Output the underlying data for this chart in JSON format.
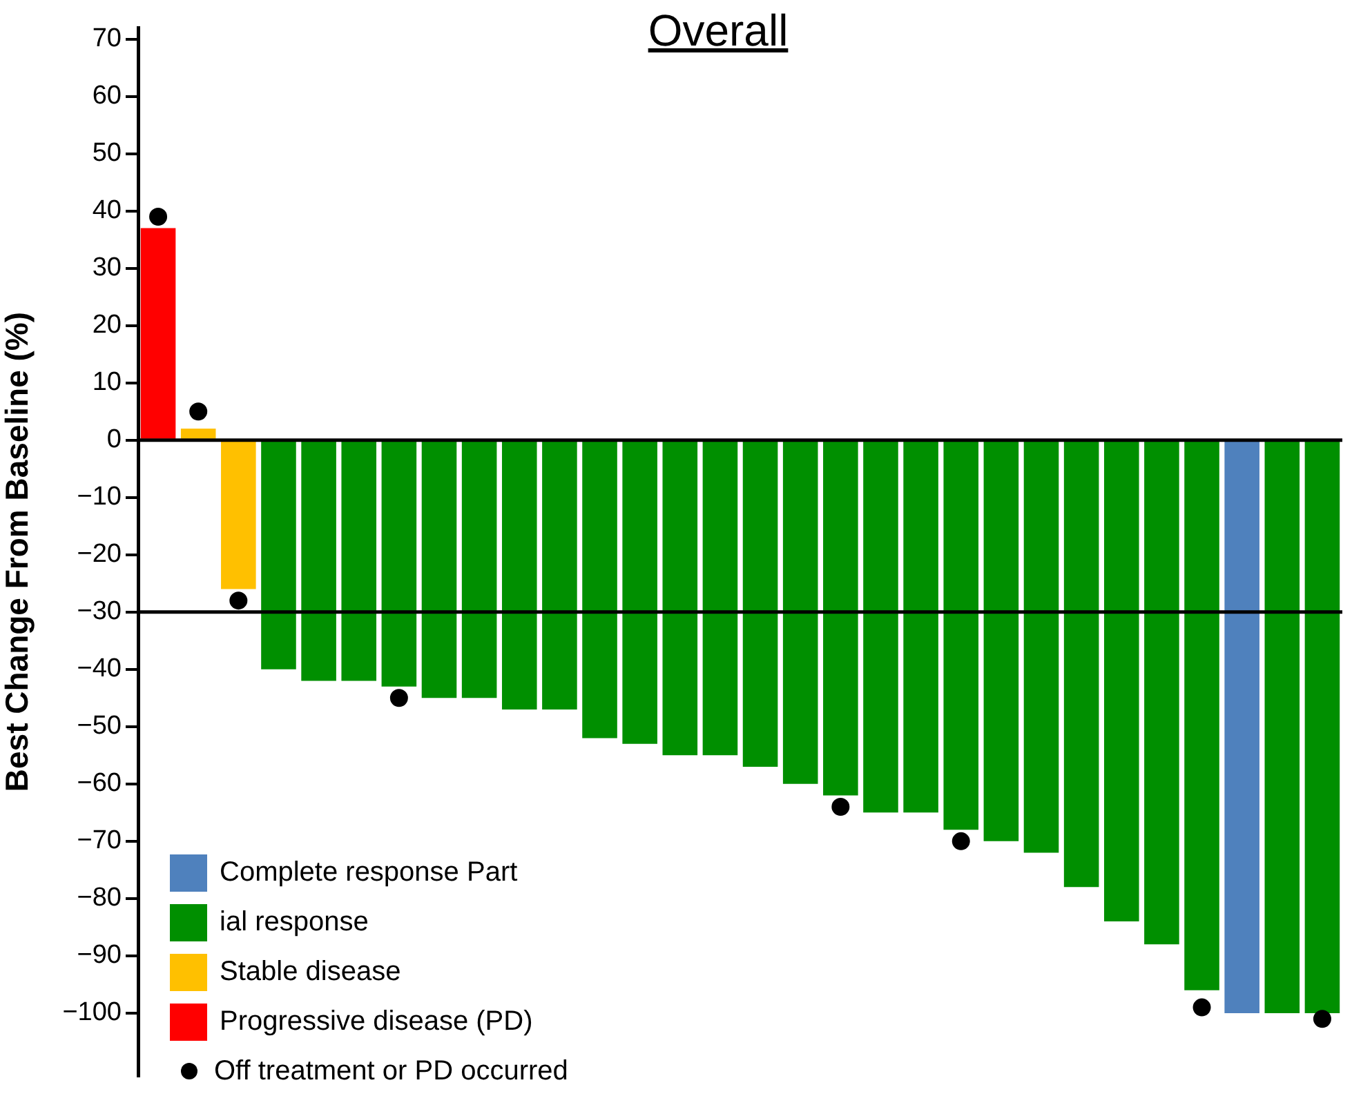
{
  "chart_data": {
    "type": "bar",
    "title": "Overall",
    "ylabel": "Best Change From Baseline (%)",
    "categories": [
      null,
      null,
      null,
      null,
      null,
      null,
      null,
      null,
      null,
      null,
      null,
      null,
      null,
      null,
      null,
      null,
      null,
      null,
      null,
      null,
      null,
      null,
      null,
      null,
      null,
      null,
      null,
      null,
      null,
      null
    ],
    "series": [
      {
        "name": "Complete response Part",
        "color": "#4f81bd",
        "values": [
          null,
          null,
          null,
          null,
          null,
          null,
          null,
          null,
          null,
          null,
          null,
          null,
          null,
          null,
          null,
          null,
          null,
          null,
          null,
          null,
          null,
          null,
          null,
          null,
          null,
          null,
          null,
          -100,
          null,
          null
        ]
      },
      {
        "name": "ial response",
        "color": "#008f00",
        "values": [
          null,
          null,
          null,
          -40,
          -42,
          -42,
          -43,
          -45,
          -45,
          -47,
          -47,
          -52,
          -53,
          -55,
          -55,
          -57,
          -60,
          -62,
          -65,
          -65,
          -68,
          -70,
          -72,
          -78,
          -84,
          -88,
          -96,
          null,
          -100,
          -100
        ]
      },
      {
        "name": "Stable disease",
        "color": "#ffc000",
        "values": [
          null,
          2,
          -26,
          null,
          null,
          null,
          null,
          null,
          null,
          null,
          null,
          null,
          null,
          null,
          null,
          null,
          null,
          null,
          null,
          null,
          null,
          null,
          null,
          null,
          null,
          null,
          null,
          null,
          null,
          null
        ]
      },
      {
        "name": "Progressive disease (PD)",
        "color": "#ff0000",
        "values": [
          37,
          null,
          null,
          null,
          null,
          null,
          null,
          null,
          null,
          null,
          null,
          null,
          null,
          null,
          null,
          null,
          null,
          null,
          null,
          null,
          null,
          null,
          null,
          null,
          null,
          null,
          null,
          null,
          null,
          null
        ]
      },
      {
        "name": "Off treatment or PD occurred",
        "type": "scatter",
        "marker": "circle",
        "color": "#000000",
        "values": [
          39,
          5,
          -28,
          null,
          null,
          null,
          -45,
          null,
          null,
          null,
          null,
          null,
          null,
          null,
          null,
          null,
          null,
          -64,
          null,
          null,
          -70,
          null,
          null,
          null,
          null,
          null,
          -99,
          null,
          null,
          -101
        ]
      }
    ],
    "ylim": [
      -111,
      72
    ],
    "yticks": [
      70,
      60,
      50,
      40,
      30,
      20,
      10,
      0,
      {
        "value": -10,
        "label": "−10"
      },
      {
        "value": -20,
        "label": "−20"
      },
      {
        "value": -30,
        "label": "−30"
      },
      {
        "value": -40,
        "label": "−40"
      },
      {
        "value": -50,
        "label": "−50"
      },
      {
        "value": -60,
        "label": "−60"
      },
      {
        "value": -70,
        "label": "−70"
      },
      {
        "value": -80,
        "label": "−80"
      },
      {
        "value": -90,
        "label": "−90"
      },
      {
        "value": -100,
        "label": "−100"
      }
    ],
    "ref_lines": [
      {
        "axis": "y",
        "value": 0,
        "color": "#000000"
      },
      {
        "axis": "y",
        "value": -30,
        "color": "#000000"
      }
    ],
    "grid": false,
    "legend": "bottom left"
  }
}
